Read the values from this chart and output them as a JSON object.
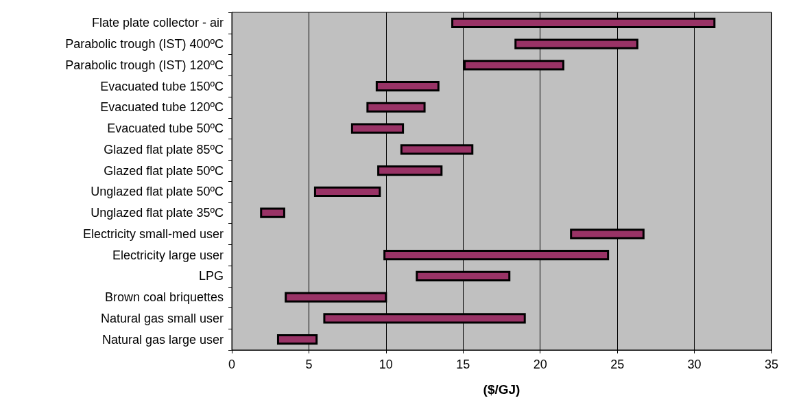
{
  "chart_data": {
    "type": "bar",
    "orientation": "horizontal",
    "xlabel": "($/GJ)",
    "categories": [
      "Flate plate collector - air",
      "Parabolic trough (IST) 400ºC",
      "Parabolic trough (IST) 120ºC",
      "Evacuated tube 150ºC",
      "Evacuated tube 120ºC",
      "Evacuated tube 50ºC",
      "Glazed flat plate 85ºC",
      "Glazed flat plate 50ºC",
      "Unglazed flat plate 50ºC",
      "Unglazed flat plate 35ºC",
      "Electricity small-med user",
      "Electricity large user",
      "LPG",
      "Brown coal briquettes",
      "Natural gas small user",
      "Natural gas large user"
    ],
    "base": [
      14.3,
      18.4,
      15.1,
      9.4,
      8.8,
      7.8,
      11.0,
      9.5,
      5.4,
      1.9,
      22.0,
      9.9,
      12.0,
      3.5,
      6.0,
      3.0
    ],
    "values": [
      17.0,
      7.9,
      6.4,
      4.0,
      3.7,
      3.3,
      4.6,
      4.1,
      4.2,
      1.5,
      4.7,
      14.5,
      6.0,
      6.5,
      13.0,
      2.5
    ],
    "color": "#993366",
    "xlim": [
      0,
      35
    ],
    "xticks": [
      0,
      5,
      10,
      15,
      20,
      25,
      30,
      35
    ],
    "grid": "x"
  }
}
